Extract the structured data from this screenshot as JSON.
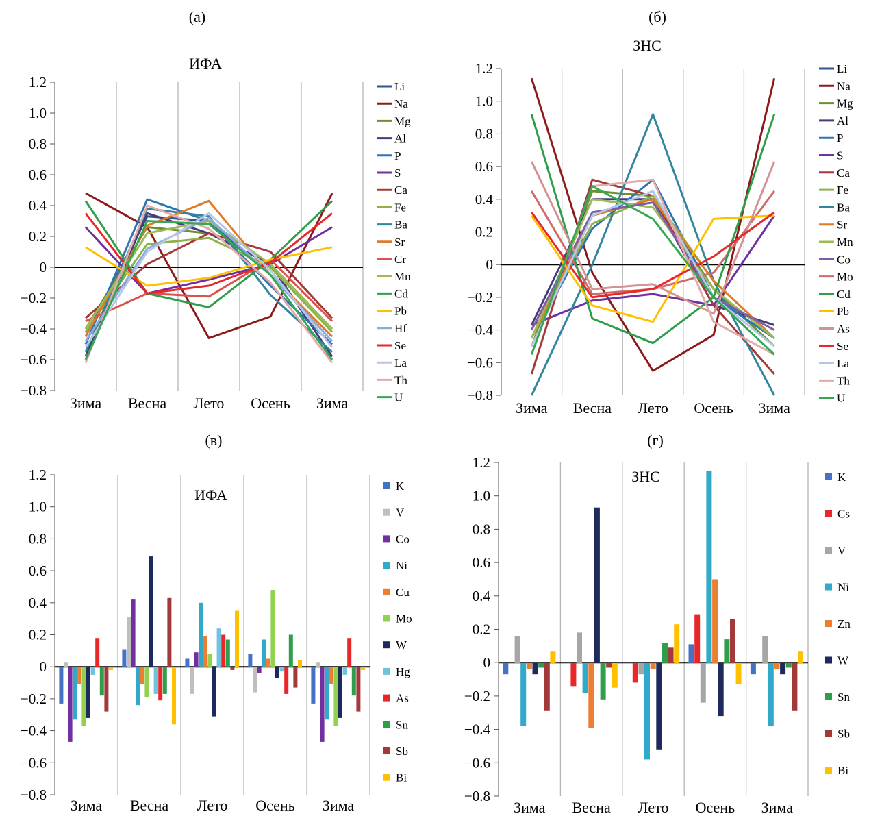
{
  "figure": {
    "panel_labels": [
      "(а)",
      "(б)",
      "(в)",
      "(г)"
    ]
  },
  "chart_data": [
    {
      "panel": "(а)",
      "type": "line",
      "title": "ИФА",
      "categories": [
        "Зима",
        "Весна",
        "Лето",
        "Осень",
        "Зима"
      ],
      "ylim": [
        -0.8,
        1.2
      ],
      "yticks": [
        -0.8,
        -0.6,
        -0.4,
        -0.2,
        0,
        0.2,
        0.4,
        0.6,
        0.8,
        1.0,
        1.2
      ],
      "ytick_labels": [
        "−0.8",
        "−0.6",
        "−0.4",
        "−0.2",
        "0",
        "0.2",
        "0.4",
        "0.6",
        "0.8",
        "1.0",
        "1.2"
      ],
      "grid": "vertical separators",
      "legend_position": "right",
      "series": [
        {
          "name": "Li",
          "color": "#2f5597",
          "values": [
            -0.45,
            0.33,
            0.3,
            -0.05,
            -0.45
          ]
        },
        {
          "name": "Na",
          "color": "#8b1a1a",
          "values": [
            0.48,
            0.26,
            -0.46,
            -0.32,
            0.48
          ]
        },
        {
          "name": "Mg",
          "color": "#6f8f2f",
          "values": [
            -0.4,
            0.26,
            0.22,
            0.02,
            -0.4
          ]
        },
        {
          "name": "Al",
          "color": "#4b3a7a",
          "values": [
            -0.58,
            0.35,
            0.22,
            0.02,
            -0.58
          ]
        },
        {
          "name": "P",
          "color": "#2e75b6",
          "values": [
            -0.5,
            0.44,
            0.3,
            -0.12,
            -0.5
          ]
        },
        {
          "name": "S",
          "color": "#7030a0",
          "values": [
            0.26,
            -0.17,
            -0.08,
            0.02,
            0.26
          ]
        },
        {
          "name": "Ca",
          "color": "#a33a3a",
          "values": [
            -0.33,
            0.02,
            0.22,
            0.1,
            -0.33
          ]
        },
        {
          "name": "Fe",
          "color": "#8fb14b",
          "values": [
            -0.42,
            0.15,
            0.19,
            0.0,
            -0.42
          ]
        },
        {
          "name": "Ba",
          "color": "#31859c",
          "values": [
            -0.55,
            0.38,
            0.33,
            -0.18,
            -0.55
          ]
        },
        {
          "name": "Sr",
          "color": "#e07b2a",
          "values": [
            -0.45,
            0.27,
            0.43,
            -0.05,
            -0.45
          ]
        },
        {
          "name": "Cr",
          "color": "#d9534f",
          "values": [
            -0.35,
            -0.17,
            -0.19,
            0.05,
            -0.35
          ]
        },
        {
          "name": "Mn",
          "color": "#9bbb59",
          "values": [
            -0.4,
            0.22,
            0.3,
            0.02,
            -0.4
          ]
        },
        {
          "name": "Cd",
          "color": "#2e9e4a",
          "values": [
            0.43,
            -0.17,
            -0.26,
            0.05,
            0.43
          ]
        },
        {
          "name": "Pb",
          "color": "#ffc000",
          "values": [
            0.13,
            -0.12,
            -0.07,
            0.05,
            0.13
          ]
        },
        {
          "name": "Hf",
          "color": "#8eaadb",
          "values": [
            -0.48,
            0.12,
            0.32,
            -0.05,
            -0.48
          ]
        },
        {
          "name": "Se",
          "color": "#e8272a",
          "values": [
            0.35,
            -0.17,
            -0.12,
            0.03,
            0.35
          ]
        },
        {
          "name": "La",
          "color": "#b4c7e7",
          "values": [
            -0.52,
            0.1,
            0.35,
            -0.02,
            -0.52
          ]
        },
        {
          "name": "Th",
          "color": "#e6a9a9",
          "values": [
            -0.62,
            0.4,
            0.25,
            -0.1,
            -0.62
          ]
        },
        {
          "name": "U",
          "color": "#34a853",
          "values": [
            -0.6,
            0.3,
            0.28,
            -0.05,
            -0.6
          ]
        }
      ]
    },
    {
      "panel": "(б)",
      "type": "line",
      "title": "ЗНС",
      "categories": [
        "Зима",
        "Весна",
        "Лето",
        "Осень",
        "Зима"
      ],
      "ylim": [
        -0.8,
        1.2
      ],
      "yticks": [
        -0.8,
        -0.6,
        -0.4,
        -0.2,
        0,
        0.2,
        0.4,
        0.6,
        0.8,
        1.0,
        1.2
      ],
      "ytick_labels": [
        "−0.8",
        "−0.6",
        "−0.4",
        "−0.2",
        "0",
        "0.2",
        "0.4",
        "0.6",
        "0.8",
        "1.0",
        "1.2"
      ],
      "grid": "vertical separators",
      "legend_position": "right",
      "series": [
        {
          "name": "Li",
          "color": "#2f5597",
          "values": [
            -0.45,
            0.3,
            0.4,
            -0.2,
            -0.45
          ]
        },
        {
          "name": "Na",
          "color": "#8b1a1a",
          "values": [
            1.14,
            -0.05,
            -0.65,
            -0.43,
            1.14
          ]
        },
        {
          "name": "Mg",
          "color": "#6f8f2f",
          "values": [
            -0.5,
            0.45,
            0.42,
            -0.15,
            -0.5
          ]
        },
        {
          "name": "Al",
          "color": "#4b3a7a",
          "values": [
            -0.37,
            0.4,
            0.4,
            -0.25,
            -0.37
          ]
        },
        {
          "name": "P",
          "color": "#2e75b6",
          "values": [
            -0.45,
            0.22,
            0.52,
            -0.2,
            -0.45
          ]
        },
        {
          "name": "S",
          "color": "#7030a0",
          "values": [
            -0.37,
            -0.22,
            -0.18,
            -0.25,
            0.3
          ]
        },
        {
          "name": "Ca",
          "color": "#a33a3a",
          "values": [
            -0.67,
            0.52,
            0.42,
            -0.25,
            -0.67
          ]
        },
        {
          "name": "Fe",
          "color": "#8fb14b",
          "values": [
            -0.45,
            0.25,
            0.42,
            -0.1,
            -0.45
          ]
        },
        {
          "name": "Ba",
          "color": "#31859c",
          "values": [
            -0.8,
            0.0,
            0.92,
            -0.1,
            -0.8
          ]
        },
        {
          "name": "Sr",
          "color": "#e07b2a",
          "values": [
            -0.45,
            0.3,
            0.4,
            -0.1,
            -0.45
          ]
        },
        {
          "name": "Mn",
          "color": "#9bbb59",
          "values": [
            -0.45,
            0.4,
            0.35,
            -0.15,
            -0.45
          ]
        },
        {
          "name": "Co",
          "color": "#7b5ea7",
          "values": [
            -0.4,
            0.32,
            0.38,
            -0.2,
            -0.4
          ]
        },
        {
          "name": "Mo",
          "color": "#cd6a6a",
          "values": [
            0.45,
            -0.18,
            -0.15,
            -0.05,
            0.45
          ]
        },
        {
          "name": "Cd",
          "color": "#2e9e4a",
          "values": [
            0.92,
            -0.33,
            -0.48,
            -0.2,
            0.92
          ]
        },
        {
          "name": "Pb",
          "color": "#ffc000",
          "values": [
            0.3,
            -0.25,
            -0.35,
            0.28,
            0.3
          ]
        },
        {
          "name": "As",
          "color": "#d49393",
          "values": [
            0.63,
            -0.15,
            -0.12,
            -0.3,
            0.63
          ]
        },
        {
          "name": "Se",
          "color": "#e8272a",
          "values": [
            0.32,
            -0.2,
            -0.15,
            0.05,
            0.32
          ]
        },
        {
          "name": "La",
          "color": "#b4c7e7",
          "values": [
            -0.5,
            0.3,
            0.45,
            -0.2,
            -0.5
          ]
        },
        {
          "name": "Th",
          "color": "#e6a9a9",
          "values": [
            -0.55,
            0.48,
            0.52,
            -0.35,
            -0.55
          ]
        },
        {
          "name": "U",
          "color": "#34a853",
          "values": [
            -0.55,
            0.48,
            0.28,
            -0.2,
            -0.55
          ]
        }
      ]
    },
    {
      "panel": "(в)",
      "type": "bar",
      "title": "ИФА",
      "categories": [
        "Зима",
        "Весна",
        "Лето",
        "Осень",
        "Зима"
      ],
      "ylim": [
        -0.8,
        1.2
      ],
      "yticks": [
        -0.8,
        -0.6,
        -0.4,
        -0.2,
        0,
        0.2,
        0.4,
        0.6,
        0.8,
        1.0,
        1.2
      ],
      "ytick_labels": [
        "−0.8",
        "−0.6",
        "−0.4",
        "−0.2",
        "0",
        "0.2",
        "0.4",
        "0.6",
        "0.8",
        "1.0",
        "1.2"
      ],
      "grid": "vertical separators",
      "legend_position": "right",
      "series": [
        {
          "name": "K",
          "color": "#4472c4",
          "values": [
            -0.23,
            0.11,
            0.05,
            0.08,
            -0.23
          ]
        },
        {
          "name": "V",
          "color": "#bfbfbf",
          "values": [
            0.03,
            0.31,
            -0.17,
            -0.16,
            0.03
          ]
        },
        {
          "name": "Co",
          "color": "#7030a0",
          "values": [
            -0.47,
            0.42,
            0.09,
            -0.04,
            -0.47
          ]
        },
        {
          "name": "Ni",
          "color": "#31a9c9",
          "values": [
            -0.33,
            -0.24,
            0.4,
            0.17,
            -0.33
          ]
        },
        {
          "name": "Cu",
          "color": "#ed7d31",
          "values": [
            -0.11,
            -0.11,
            0.19,
            0.05,
            -0.11
          ]
        },
        {
          "name": "Mo",
          "color": "#92d050",
          "values": [
            -0.37,
            -0.19,
            0.08,
            0.48,
            -0.37
          ]
        },
        {
          "name": "W",
          "color": "#1f2a5c",
          "values": [
            -0.32,
            0.69,
            -0.31,
            -0.07,
            -0.32
          ]
        },
        {
          "name": "Hg",
          "color": "#6fc3df",
          "values": [
            -0.05,
            -0.17,
            0.24,
            -0.03,
            -0.05
          ]
        },
        {
          "name": "As",
          "color": "#e8272a",
          "values": [
            0.18,
            -0.21,
            0.2,
            -0.17,
            0.18
          ]
        },
        {
          "name": "Sn",
          "color": "#2e9e4a",
          "values": [
            -0.18,
            -0.17,
            0.17,
            0.2,
            -0.18
          ]
        },
        {
          "name": "Sb",
          "color": "#a33a3a",
          "values": [
            -0.28,
            0.43,
            -0.02,
            -0.13,
            -0.28
          ]
        },
        {
          "name": "Bi",
          "color": "#ffc000",
          "values": [
            -0.02,
            -0.36,
            0.35,
            0.04,
            -0.02
          ]
        }
      ]
    },
    {
      "panel": "(г)",
      "type": "bar",
      "title": "ЗНС",
      "categories": [
        "Зима",
        "Весна",
        "Лето",
        "Осень",
        "Зима"
      ],
      "ylim": [
        -0.8,
        1.2
      ],
      "yticks": [
        -0.8,
        -0.6,
        -0.4,
        -0.2,
        0,
        0.2,
        0.4,
        0.6,
        0.8,
        1.0,
        1.2
      ],
      "ytick_labels": [
        "−0.8",
        "−0.6",
        "−0.4",
        "−0.2",
        "0",
        "0.2",
        "0.4",
        "0.6",
        "0.8",
        "1.0",
        "1.2"
      ],
      "grid": "vertical separators",
      "legend_position": "right",
      "series": [
        {
          "name": "K",
          "color": "#4472c4",
          "values": [
            -0.07,
            0.0,
            0.0,
            0.11,
            -0.07
          ]
        },
        {
          "name": "Cs",
          "color": "#e8272a",
          "values": [
            0.0,
            -0.14,
            -0.12,
            0.29,
            0.0
          ]
        },
        {
          "name": "V",
          "color": "#a6a6a6",
          "values": [
            0.16,
            0.18,
            -0.07,
            -0.24,
            0.16
          ]
        },
        {
          "name": "Ni",
          "color": "#31a9c9",
          "values": [
            -0.38,
            -0.18,
            -0.58,
            1.15,
            -0.38
          ]
        },
        {
          "name": "Zn",
          "color": "#ed7d31",
          "values": [
            -0.04,
            -0.39,
            -0.04,
            0.5,
            -0.04
          ]
        },
        {
          "name": "W",
          "color": "#1f2a5c",
          "values": [
            -0.07,
            0.93,
            -0.52,
            -0.32,
            -0.07
          ]
        },
        {
          "name": "Sn",
          "color": "#2e9e4a",
          "values": [
            -0.03,
            -0.22,
            0.12,
            0.14,
            -0.03
          ]
        },
        {
          "name": "Sb",
          "color": "#a33a3a",
          "values": [
            -0.29,
            -0.03,
            0.09,
            0.26,
            -0.29
          ]
        },
        {
          "name": "Bi",
          "color": "#ffc000",
          "values": [
            0.07,
            -0.15,
            0.23,
            -0.13,
            0.07
          ]
        }
      ]
    }
  ]
}
